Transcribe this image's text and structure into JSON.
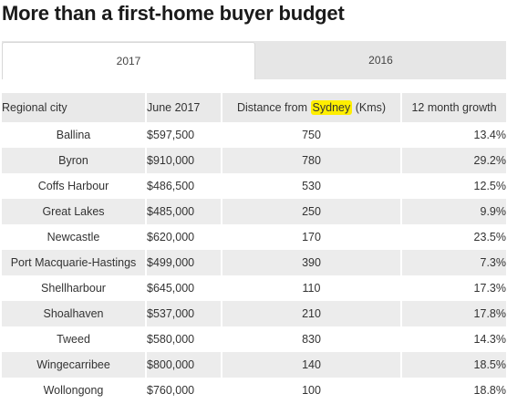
{
  "page": {
    "title": "More than a first-home buyer budget"
  },
  "tabs": [
    {
      "label": "2017",
      "active": true
    },
    {
      "label": "2016",
      "active": false
    }
  ],
  "table": {
    "headers": {
      "city": "Regional city",
      "price": "June 2017",
      "distance_prefix": "Distance from ",
      "distance_highlight": "Sydney",
      "distance_suffix": " (Kms)",
      "growth": "12 month growth"
    },
    "highlight_color": "#ffee00",
    "rows": [
      {
        "city": "Ballina",
        "price": "$597,500",
        "distance": "750",
        "growth": "13.4%"
      },
      {
        "city": "Byron",
        "price": "$910,000",
        "distance": "780",
        "growth": "29.2%"
      },
      {
        "city": "Coffs Harbour",
        "price": "$486,500",
        "distance": "530",
        "growth": "12.5%"
      },
      {
        "city": "Great Lakes",
        "price": "$485,000",
        "distance": "250",
        "growth": "9.9%"
      },
      {
        "city": "Newcastle",
        "price": "$620,000",
        "distance": "170",
        "growth": "23.5%"
      },
      {
        "city": "Port Macquarie-Hastings",
        "price": "$499,000",
        "distance": "390",
        "growth": "7.3%"
      },
      {
        "city": "Shellharbour",
        "price": "$645,000",
        "distance": "110",
        "growth": "17.3%"
      },
      {
        "city": "Shoalhaven",
        "price": "$537,000",
        "distance": "210",
        "growth": "17.8%"
      },
      {
        "city": "Tweed",
        "price": "$580,000",
        "distance": "830",
        "growth": "14.3%"
      },
      {
        "city": "Wingecarribee",
        "price": "$800,000",
        "distance": "140",
        "growth": "18.5%"
      },
      {
        "city": "Wollongong",
        "price": "$760,000",
        "distance": "100",
        "growth": "18.8%"
      }
    ]
  }
}
